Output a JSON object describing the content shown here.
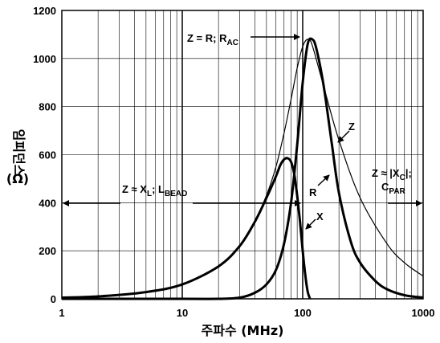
{
  "chart_data": {
    "type": "line",
    "xlabel": "주파수 (MHz)",
    "ylabel": "임피던스",
    "ylabel_unit": "(Ω)",
    "x_scale": "log",
    "xlim": [
      1,
      1000
    ],
    "ylim": [
      0,
      1200
    ],
    "grid": true,
    "x_ticks": [
      "1",
      "10",
      "100",
      "1000"
    ],
    "y_ticks": [
      "0",
      "200",
      "400",
      "600",
      "800",
      "1000",
      "1200"
    ],
    "series": [
      {
        "name": "Z",
        "width": "thin",
        "x": [
          1,
          2,
          5,
          10,
          20,
          30,
          40,
          50,
          60,
          70,
          80,
          90,
          100,
          110,
          120,
          150,
          200,
          300,
          500,
          700,
          1000
        ],
        "y": [
          5,
          10,
          28,
          60,
          135,
          220,
          320,
          430,
          550,
          690,
          830,
          960,
          1050,
          1080,
          1055,
          880,
          660,
          420,
          230,
          150,
          95
        ]
      },
      {
        "name": "R",
        "width": "thick",
        "x": [
          1,
          10,
          20,
          30,
          40,
          50,
          60,
          70,
          80,
          90,
          100,
          110,
          120,
          130,
          150,
          175,
          200,
          250,
          300,
          400,
          500,
          700,
          1000
        ],
        "y": [
          0,
          0,
          0,
          5,
          25,
          60,
          120,
          230,
          400,
          640,
          900,
          1060,
          1080,
          1040,
          880,
          640,
          440,
          240,
          150,
          75,
          40,
          15,
          5
        ]
      },
      {
        "name": "X",
        "width": "thick",
        "x": [
          1,
          2,
          5,
          10,
          20,
          30,
          40,
          50,
          60,
          65,
          70,
          75,
          80,
          85,
          90,
          95,
          100,
          105,
          110,
          115
        ],
        "y": [
          5,
          10,
          28,
          60,
          135,
          220,
          320,
          420,
          510,
          555,
          580,
          585,
          570,
          520,
          430,
          320,
          200,
          100,
          30,
          0
        ]
      }
    ],
    "annotations": {
      "z_eq_r": "Z = R; R",
      "z_eq_r_sub": "AC",
      "z_xl": "Z ≈ X",
      "z_xl_sub1": "L",
      "z_xl_mid": "; L",
      "z_xl_sub2": "BEAD",
      "z_xc": "Z ≈ |X",
      "z_xc_sub": "C",
      "z_xc_end": "|;",
      "cpar": "C",
      "cpar_sub": "PAR",
      "label_z": "Z",
      "label_r": "R",
      "label_x": "X"
    }
  }
}
